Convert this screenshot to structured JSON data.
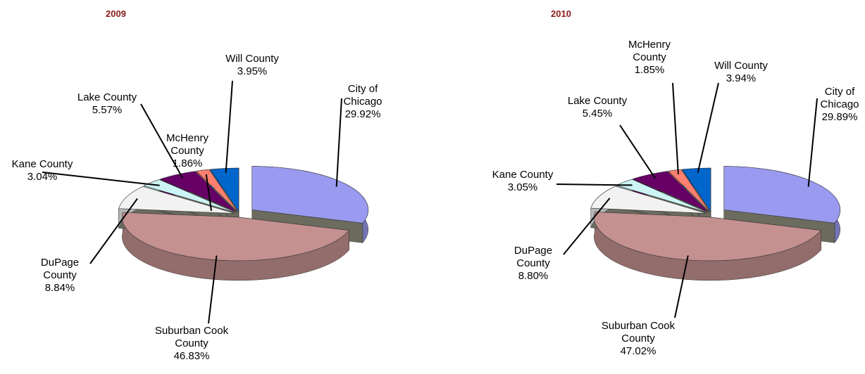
{
  "chart_data": [
    {
      "type": "pie3d",
      "title": "2009",
      "categories": [
        "City of Chicago",
        "Suburban Cook County",
        "DuPage County",
        "Kane County",
        "Lake County",
        "McHenry County",
        "Will County"
      ],
      "values": [
        29.92,
        46.83,
        8.84,
        3.04,
        5.57,
        1.86,
        3.95
      ],
      "value_labels": [
        "29.92%",
        "46.83%",
        "8.84%",
        "3.04%",
        "5.57%",
        "1.86%",
        "3.95%"
      ],
      "colors": [
        "#9a9af0",
        "#c49090",
        "#f2f2f2",
        "#ccf4f4",
        "#660066",
        "#ff8070",
        "#0066cc"
      ]
    },
    {
      "type": "pie3d",
      "title": "2010",
      "categories": [
        "City of Chicago",
        "Suburban Cook County",
        "DuPage County",
        "Kane County",
        "Lake County",
        "McHenry County",
        "Will County"
      ],
      "values": [
        29.89,
        47.02,
        8.8,
        3.05,
        5.45,
        1.85,
        3.94
      ],
      "value_labels": [
        "29.89%",
        "47.02%",
        "8.80%",
        "3.05%",
        "5.45%",
        "1.85%",
        "3.94%"
      ],
      "colors": [
        "#9a9af0",
        "#c49090",
        "#f2f2f2",
        "#ccf4f4",
        "#660066",
        "#ff8070",
        "#0066cc"
      ]
    }
  ]
}
